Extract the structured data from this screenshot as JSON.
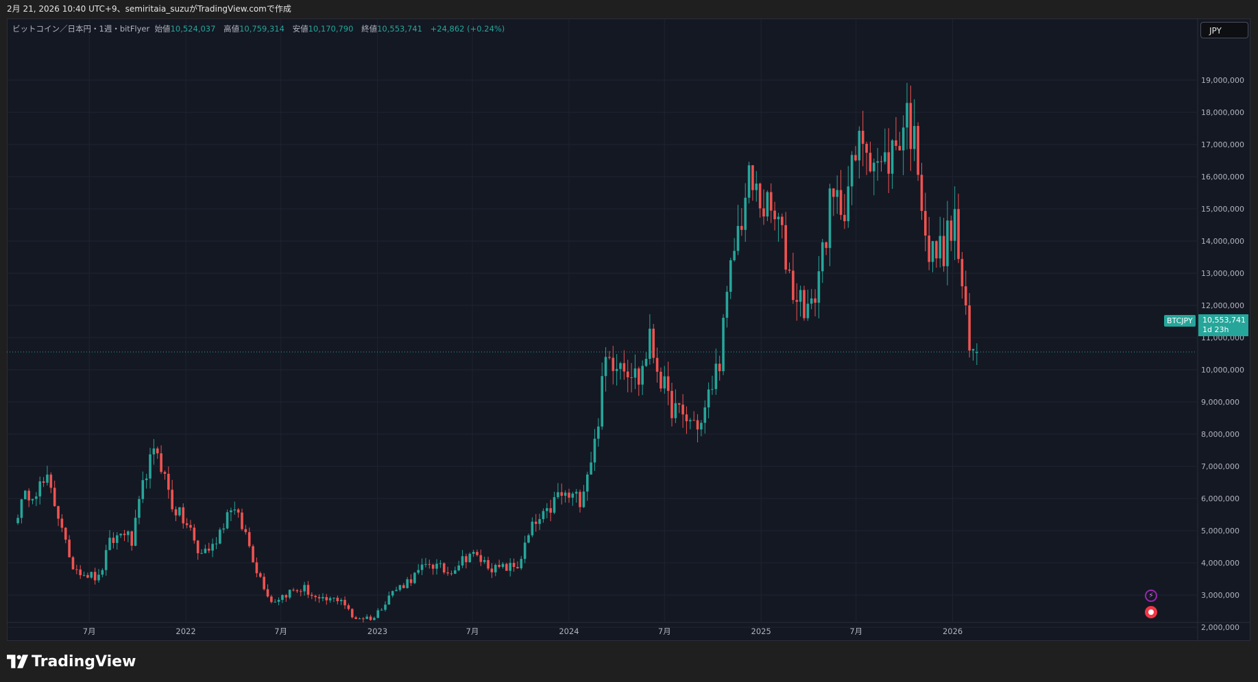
{
  "topbar": {
    "text": "2月 21, 2026 10:40 UTC+9、semiritaia_suzuがTradingView.comで作成"
  },
  "legend": {
    "symbol": "ビットコイン／日本円・1週・bitFlyer",
    "open_label": "始値",
    "open": "10,524,037",
    "high_label": "高値",
    "high": "10,759,314",
    "low_label": "安値",
    "low": "10,170,790",
    "close_label": "終値",
    "close": "10,553,741",
    "change": "+24,862 (+0.24%)"
  },
  "currency_button": "JPY",
  "price_badge": {
    "symbol": "BTCJPY",
    "price": "10,553,741",
    "countdown": "1d 23h"
  },
  "brand": "TradingView",
  "colors": {
    "up": "#26a69a",
    "down": "#ef5350",
    "background": "#141823",
    "grid": "#1f2330",
    "axis_text": "#b2b5be"
  },
  "icons": [
    "bolt-icon",
    "record-icon",
    "tradingview-logo-icon"
  ],
  "chart_data": {
    "type": "candlestick",
    "interval": "1 week",
    "y_axis_labels": [
      "19,000,000",
      "18,000,000",
      "17,000,000",
      "16,000,000",
      "15,000,000",
      "14,000,000",
      "13,000,000",
      "12,000,000",
      "11,000,000",
      "10,000,000",
      "9,000,000",
      "8,000,000",
      "7,000,000",
      "6,000,000",
      "5,000,000",
      "4,000,000",
      "3,000,000",
      "2,000,000"
    ],
    "y_axis_values": [
      19000000,
      18000000,
      17000000,
      16000000,
      15000000,
      14000000,
      13000000,
      12000000,
      11000000,
      10000000,
      9000000,
      8000000,
      7000000,
      6000000,
      5000000,
      4000000,
      3000000,
      2000000
    ],
    "x_axis_labels": [
      {
        "label": "7月",
        "date": "2021-07-01"
      },
      {
        "label": "2022",
        "date": "2022-01-01"
      },
      {
        "label": "7月",
        "date": "2022-07-01"
      },
      {
        "label": "2023",
        "date": "2023-01-01"
      },
      {
        "label": "7月",
        "date": "2023-07-01"
      },
      {
        "label": "2024",
        "date": "2024-01-01"
      },
      {
        "label": "7月",
        "date": "2024-07-01"
      },
      {
        "label": "2025",
        "date": "2025-01-01"
      },
      {
        "label": "7月",
        "date": "2025-07-01"
      },
      {
        "label": "2026",
        "date": "2026-01-01"
      }
    ],
    "current_price": 10553741,
    "weekly_close_path": [
      {
        "date": "2021-02-15",
        "close": 5600000
      },
      {
        "date": "2021-03-08",
        "close": 6200000
      },
      {
        "date": "2021-04-12",
        "close": 6500000
      },
      {
        "date": "2021-05-10",
        "close": 5200000
      },
      {
        "date": "2021-05-24",
        "close": 4000000
      },
      {
        "date": "2021-06-21",
        "close": 3700000
      },
      {
        "date": "2021-07-19",
        "close": 3500000
      },
      {
        "date": "2021-08-09",
        "close": 4600000
      },
      {
        "date": "2021-09-06",
        "close": 5000000
      },
      {
        "date": "2021-09-20",
        "close": 4600000
      },
      {
        "date": "2021-10-18",
        "close": 6900000
      },
      {
        "date": "2021-11-08",
        "close": 7500000
      },
      {
        "date": "2021-12-06",
        "close": 5800000
      },
      {
        "date": "2022-01-10",
        "close": 5000000
      },
      {
        "date": "2022-01-24",
        "close": 4300000
      },
      {
        "date": "2022-02-21",
        "close": 4500000
      },
      {
        "date": "2022-03-28",
        "close": 5800000
      },
      {
        "date": "2022-04-25",
        "close": 4900000
      },
      {
        "date": "2022-05-16",
        "close": 3800000
      },
      {
        "date": "2022-06-13",
        "close": 2800000
      },
      {
        "date": "2022-07-18",
        "close": 3100000
      },
      {
        "date": "2022-08-15",
        "close": 3200000
      },
      {
        "date": "2022-09-12",
        "close": 2800000
      },
      {
        "date": "2022-10-24",
        "close": 2900000
      },
      {
        "date": "2022-11-14",
        "close": 2300000
      },
      {
        "date": "2022-12-26",
        "close": 2300000
      },
      {
        "date": "2023-01-23",
        "close": 3000000
      },
      {
        "date": "2023-03-13",
        "close": 3600000
      },
      {
        "date": "2023-04-10",
        "close": 4000000
      },
      {
        "date": "2023-05-15",
        "close": 3700000
      },
      {
        "date": "2023-06-26",
        "close": 4300000
      },
      {
        "date": "2023-08-14",
        "close": 3800000
      },
      {
        "date": "2023-09-25",
        "close": 3900000
      },
      {
        "date": "2023-10-23",
        "close": 5100000
      },
      {
        "date": "2023-11-20",
        "close": 5500000
      },
      {
        "date": "2023-12-11",
        "close": 6100000
      },
      {
        "date": "2024-01-22",
        "close": 6000000
      },
      {
        "date": "2024-02-19",
        "close": 7700000
      },
      {
        "date": "2024-03-11",
        "close": 10300000
      },
      {
        "date": "2024-04-08",
        "close": 10400000
      },
      {
        "date": "2024-05-13",
        "close": 9700000
      },
      {
        "date": "2024-06-03",
        "close": 10900000
      },
      {
        "date": "2024-07-08",
        "close": 9000000
      },
      {
        "date": "2024-08-05",
        "close": 8500000
      },
      {
        "date": "2024-09-09",
        "close": 8300000
      },
      {
        "date": "2024-10-14",
        "close": 10400000
      },
      {
        "date": "2024-11-11",
        "close": 13800000
      },
      {
        "date": "2024-12-09",
        "close": 15800000
      },
      {
        "date": "2025-01-06",
        "close": 15100000
      },
      {
        "date": "2025-02-03",
        "close": 14500000
      },
      {
        "date": "2025-03-03",
        "close": 12500000
      },
      {
        "date": "2025-04-07",
        "close": 11800000
      },
      {
        "date": "2025-05-12",
        "close": 15000000
      },
      {
        "date": "2025-06-09",
        "close": 15300000
      },
      {
        "date": "2025-07-14",
        "close": 17300000
      },
      {
        "date": "2025-08-18",
        "close": 16200000
      },
      {
        "date": "2025-09-15",
        "close": 17000000
      },
      {
        "date": "2025-10-06",
        "close": 18000000
      },
      {
        "date": "2025-10-27",
        "close": 16500000
      },
      {
        "date": "2025-11-17",
        "close": 13500000
      },
      {
        "date": "2025-12-15",
        "close": 13800000
      },
      {
        "date": "2026-01-05",
        "close": 14600000
      },
      {
        "date": "2026-02-02",
        "close": 10500000
      },
      {
        "date": "2026-02-16",
        "close": 10553741
      }
    ]
  }
}
